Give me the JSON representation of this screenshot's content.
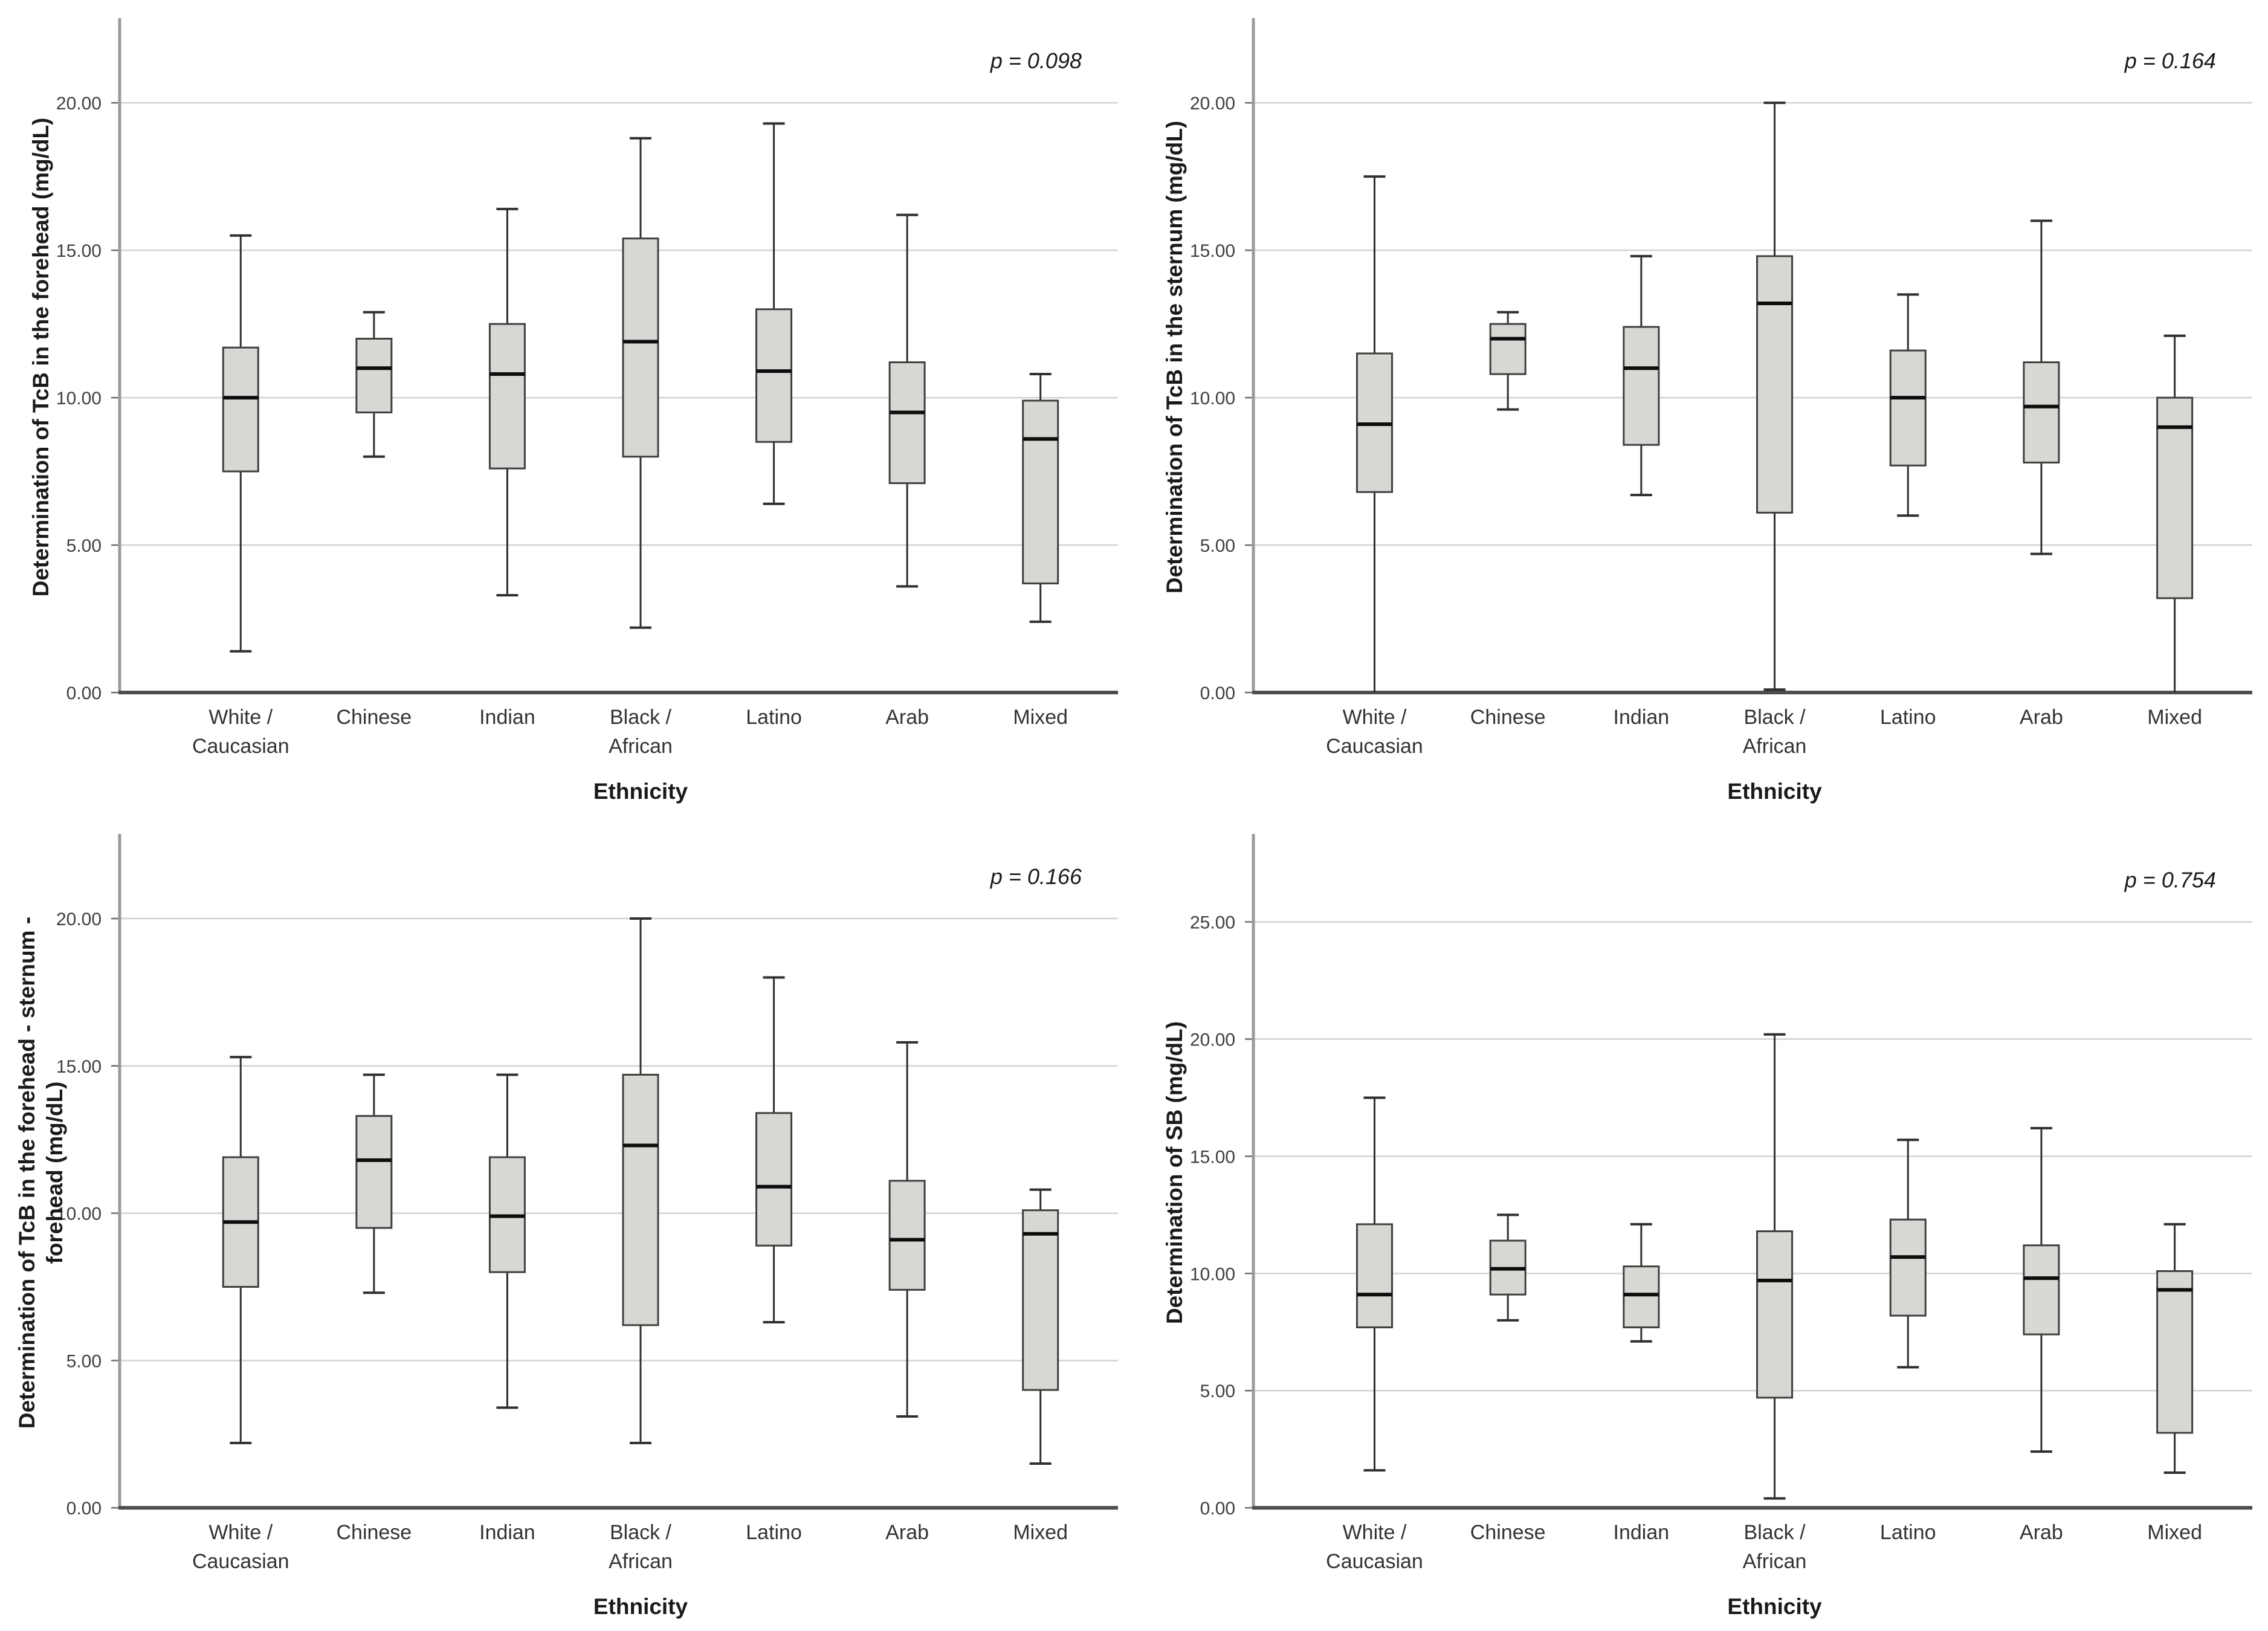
{
  "page": {
    "background": "#ffffff"
  },
  "colors": {
    "box_fill": "#d7d7d4",
    "box_border": "#3f3f3f",
    "median_line": "#0d0d0d",
    "whisker": "#2f2f2f",
    "gridline": "#d2d2d2",
    "y_spine": "#9a9a9a",
    "x_axis_line": "#4d4d4d",
    "tick_mark": "#6b6b6b",
    "tick_text": "#404040",
    "category_text": "#333333",
    "title_text": "#1a1a1a",
    "p_text": "#1a1a1a"
  },
  "shared": {
    "x_axis_label": "Ethnicity",
    "category_lines": [
      [
        "White /",
        "Caucasian"
      ],
      [
        "Chinese"
      ],
      [
        "Indian"
      ],
      [
        "Black /",
        "African"
      ],
      [
        "Latino"
      ],
      [
        "Arab"
      ],
      [
        "Mixed"
      ]
    ]
  },
  "chart_data": [
    {
      "id": "tcb-forehead",
      "type": "box",
      "position": "top-left",
      "ylabel": "Determination of TcB in the forehead (mg/dL)",
      "ylabel_lines": [
        "Determination of TcB in the forehead (mg/dL)"
      ],
      "xlabel": "Ethnicity",
      "p_label": "p = 0.098",
      "grid": true,
      "ylim": [
        0,
        22.75
      ],
      "yticks": [
        0,
        5,
        10,
        15,
        20
      ],
      "ytick_labels": [
        "0.00",
        "5.00",
        "10.00",
        "15.00",
        "20.00"
      ],
      "categories": [
        "White / Caucasian",
        "Chinese",
        "Indian",
        "Black / African",
        "Latino",
        "Arab",
        "Mixed"
      ],
      "boxes": [
        {
          "category": "White / Caucasian",
          "whisker_low": 1.4,
          "q1": 7.5,
          "median": 10.0,
          "q3": 11.7,
          "whisker_high": 15.5
        },
        {
          "category": "Chinese",
          "whisker_low": 8.0,
          "q1": 9.5,
          "median": 11.0,
          "q3": 12.0,
          "whisker_high": 12.9
        },
        {
          "category": "Indian",
          "whisker_low": 3.3,
          "q1": 7.6,
          "median": 10.8,
          "q3": 12.5,
          "whisker_high": 16.4
        },
        {
          "category": "Black / African",
          "whisker_low": 2.2,
          "q1": 8.0,
          "median": 11.9,
          "q3": 15.4,
          "whisker_high": 18.8
        },
        {
          "category": "Latino",
          "whisker_low": 6.4,
          "q1": 8.5,
          "median": 10.9,
          "q3": 13.0,
          "whisker_high": 19.3
        },
        {
          "category": "Arab",
          "whisker_low": 3.6,
          "q1": 7.1,
          "median": 9.5,
          "q3": 11.2,
          "whisker_high": 16.2
        },
        {
          "category": "Mixed",
          "whisker_low": 2.4,
          "q1": 3.7,
          "median": 8.6,
          "q3": 9.9,
          "whisker_high": 10.8
        }
      ]
    },
    {
      "id": "tcb-sternum",
      "type": "box",
      "position": "top-right",
      "ylabel": "Determination of TcB in the sternum (mg/dL)",
      "ylabel_lines": [
        "Determination of TcB in the sternum (mg/dL)"
      ],
      "xlabel": "Ethnicity",
      "p_label": "p = 0.164",
      "grid": true,
      "ylim": [
        0,
        22.75
      ],
      "yticks": [
        0,
        5,
        10,
        15,
        20
      ],
      "ytick_labels": [
        "0.00",
        "5.00",
        "10.00",
        "15.00",
        "20.00"
      ],
      "categories": [
        "White / Caucasian",
        "Chinese",
        "Indian",
        "Black / African",
        "Latino",
        "Arab",
        "Mixed"
      ],
      "boxes": [
        {
          "category": "White / Caucasian",
          "whisker_low": 0.0,
          "q1": 6.8,
          "median": 9.1,
          "q3": 11.5,
          "whisker_high": 17.5
        },
        {
          "category": "Chinese",
          "whisker_low": 9.6,
          "q1": 10.8,
          "median": 12.0,
          "q3": 12.5,
          "whisker_high": 12.9
        },
        {
          "category": "Indian",
          "whisker_low": 6.7,
          "q1": 8.4,
          "median": 11.0,
          "q3": 12.4,
          "whisker_high": 14.8
        },
        {
          "category": "Black / African",
          "whisker_low": 0.1,
          "q1": 6.1,
          "median": 13.2,
          "q3": 14.8,
          "whisker_high": 20.0
        },
        {
          "category": "Latino",
          "whisker_low": 6.0,
          "q1": 7.7,
          "median": 10.0,
          "q3": 11.6,
          "whisker_high": 13.5
        },
        {
          "category": "Arab",
          "whisker_low": 4.7,
          "q1": 7.8,
          "median": 9.7,
          "q3": 11.2,
          "whisker_high": 16.0
        },
        {
          "category": "Mixed",
          "whisker_low": 0.0,
          "q1": 3.2,
          "median": 9.0,
          "q3": 10.0,
          "whisker_high": 12.1
        }
      ]
    },
    {
      "id": "tcb-forehead-sternum-forehead",
      "type": "box",
      "position": "bottom-left",
      "ylabel": "Determination of TcB in the forehead - sternum - forehead (mg/dL)",
      "ylabel_lines": [
        "Determination of TcB in the forehead - sternum -",
        "forehead (mg/dL)"
      ],
      "xlabel": "Ethnicity",
      "p_label": "p = 0.166",
      "grid": true,
      "ylim": [
        0,
        22.75
      ],
      "yticks": [
        0,
        5,
        10,
        15,
        20
      ],
      "ytick_labels": [
        "0.00",
        "5.00",
        "10.00",
        "15.00",
        "20.00"
      ],
      "categories": [
        "White / Caucasian",
        "Chinese",
        "Indian",
        "Black / African",
        "Latino",
        "Arab",
        "Mixed"
      ],
      "boxes": [
        {
          "category": "White / Caucasian",
          "whisker_low": 2.2,
          "q1": 7.5,
          "median": 9.7,
          "q3": 11.9,
          "whisker_high": 15.3
        },
        {
          "category": "Chinese",
          "whisker_low": 7.3,
          "q1": 9.5,
          "median": 11.8,
          "q3": 13.3,
          "whisker_high": 14.7
        },
        {
          "category": "Indian",
          "whisker_low": 3.4,
          "q1": 8.0,
          "median": 9.9,
          "q3": 11.9,
          "whisker_high": 14.7
        },
        {
          "category": "Black / African",
          "whisker_low": 2.2,
          "q1": 6.2,
          "median": 12.3,
          "q3": 14.7,
          "whisker_high": 20.0
        },
        {
          "category": "Latino",
          "whisker_low": 6.3,
          "q1": 8.9,
          "median": 10.9,
          "q3": 13.4,
          "whisker_high": 18.0
        },
        {
          "category": "Arab",
          "whisker_low": 3.1,
          "q1": 7.4,
          "median": 9.1,
          "q3": 11.1,
          "whisker_high": 15.8
        },
        {
          "category": "Mixed",
          "whisker_low": 1.5,
          "q1": 4.0,
          "median": 9.3,
          "q3": 10.1,
          "whisker_high": 10.8
        }
      ]
    },
    {
      "id": "sb",
      "type": "box",
      "position": "bottom-right",
      "ylabel": "Determination of SB (mg/dL)",
      "ylabel_lines": [
        "Determination of SB (mg/dL)"
      ],
      "xlabel": "Ethnicity",
      "p_label": "p = 0.754",
      "grid": true,
      "ylim": [
        0,
        28.6
      ],
      "yticks": [
        0,
        5,
        10,
        15,
        20,
        25
      ],
      "ytick_labels": [
        "0.00",
        "5.00",
        "10.00",
        "15.00",
        "20.00",
        "25.00"
      ],
      "categories": [
        "White / Caucasian",
        "Chinese",
        "Indian",
        "Black / African",
        "Latino",
        "Arab",
        "Mixed"
      ],
      "boxes": [
        {
          "category": "White / Caucasian",
          "whisker_low": 1.6,
          "q1": 7.7,
          "median": 9.1,
          "q3": 12.1,
          "whisker_high": 17.5
        },
        {
          "category": "Chinese",
          "whisker_low": 8.0,
          "q1": 9.1,
          "median": 10.2,
          "q3": 11.4,
          "whisker_high": 12.5
        },
        {
          "category": "Indian",
          "whisker_low": 7.1,
          "q1": 7.7,
          "median": 9.1,
          "q3": 10.3,
          "whisker_high": 12.1
        },
        {
          "category": "Black / African",
          "whisker_low": 0.4,
          "q1": 4.7,
          "median": 9.7,
          "q3": 11.8,
          "whisker_high": 20.2
        },
        {
          "category": "Latino",
          "whisker_low": 6.0,
          "q1": 8.2,
          "median": 10.7,
          "q3": 12.3,
          "whisker_high": 15.7
        },
        {
          "category": "Arab",
          "whisker_low": 2.4,
          "q1": 7.4,
          "median": 9.8,
          "q3": 11.2,
          "whisker_high": 16.2
        },
        {
          "category": "Mixed",
          "whisker_low": 1.5,
          "q1": 3.2,
          "median": 9.3,
          "q3": 10.1,
          "whisker_high": 12.1
        }
      ]
    }
  ]
}
